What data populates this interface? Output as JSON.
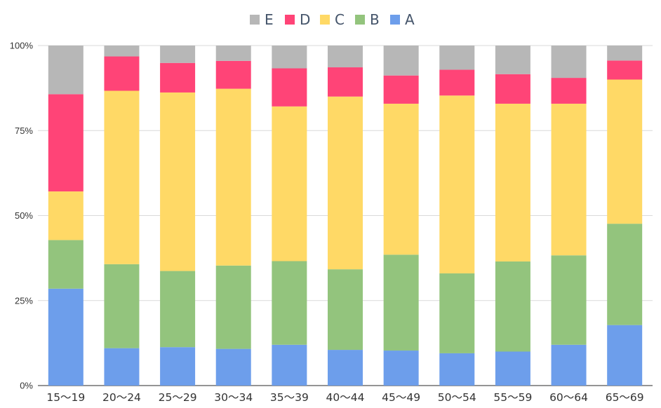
{
  "chart_data": {
    "type": "bar",
    "stacked": true,
    "normalized": true,
    "categories": [
      "15〜19",
      "20〜24",
      "25〜29",
      "30〜34",
      "35〜39",
      "40〜44",
      "45〜49",
      "50〜54",
      "55〜59",
      "60〜64",
      "65〜69"
    ],
    "series": [
      {
        "name": "A",
        "color": "#6d9eeb",
        "values": [
          28.5,
          11.0,
          11.3,
          10.8,
          12.0,
          10.5,
          10.3,
          9.5,
          10.0,
          12.0,
          17.8
        ]
      },
      {
        "name": "B",
        "color": "#93c47d",
        "values": [
          14.3,
          24.7,
          22.4,
          24.5,
          24.6,
          23.7,
          28.2,
          23.5,
          26.5,
          26.3,
          29.8
        ]
      },
      {
        "name": "C",
        "color": "#ffd966",
        "values": [
          14.3,
          51.0,
          52.5,
          52.0,
          45.5,
          50.8,
          44.4,
          52.3,
          46.4,
          44.6,
          42.4
        ]
      },
      {
        "name": "D",
        "color": "#ff4477",
        "values": [
          28.6,
          10.1,
          8.7,
          8.2,
          11.2,
          8.6,
          8.3,
          7.6,
          8.7,
          7.6,
          5.6
        ]
      },
      {
        "name": "E",
        "color": "#b7b7b7",
        "values": [
          14.3,
          3.2,
          5.1,
          4.5,
          6.7,
          6.4,
          8.8,
          7.1,
          8.4,
          9.5,
          4.4
        ]
      }
    ],
    "legend": [
      "E",
      "D",
      "C",
      "B",
      "A"
    ],
    "legend_position": "top-center",
    "y_ticks": [
      "0%",
      "25%",
      "50%",
      "75%",
      "100%"
    ],
    "ylim": [
      0,
      100
    ],
    "grid": true,
    "title": "",
    "xlabel": "",
    "ylabel": ""
  }
}
